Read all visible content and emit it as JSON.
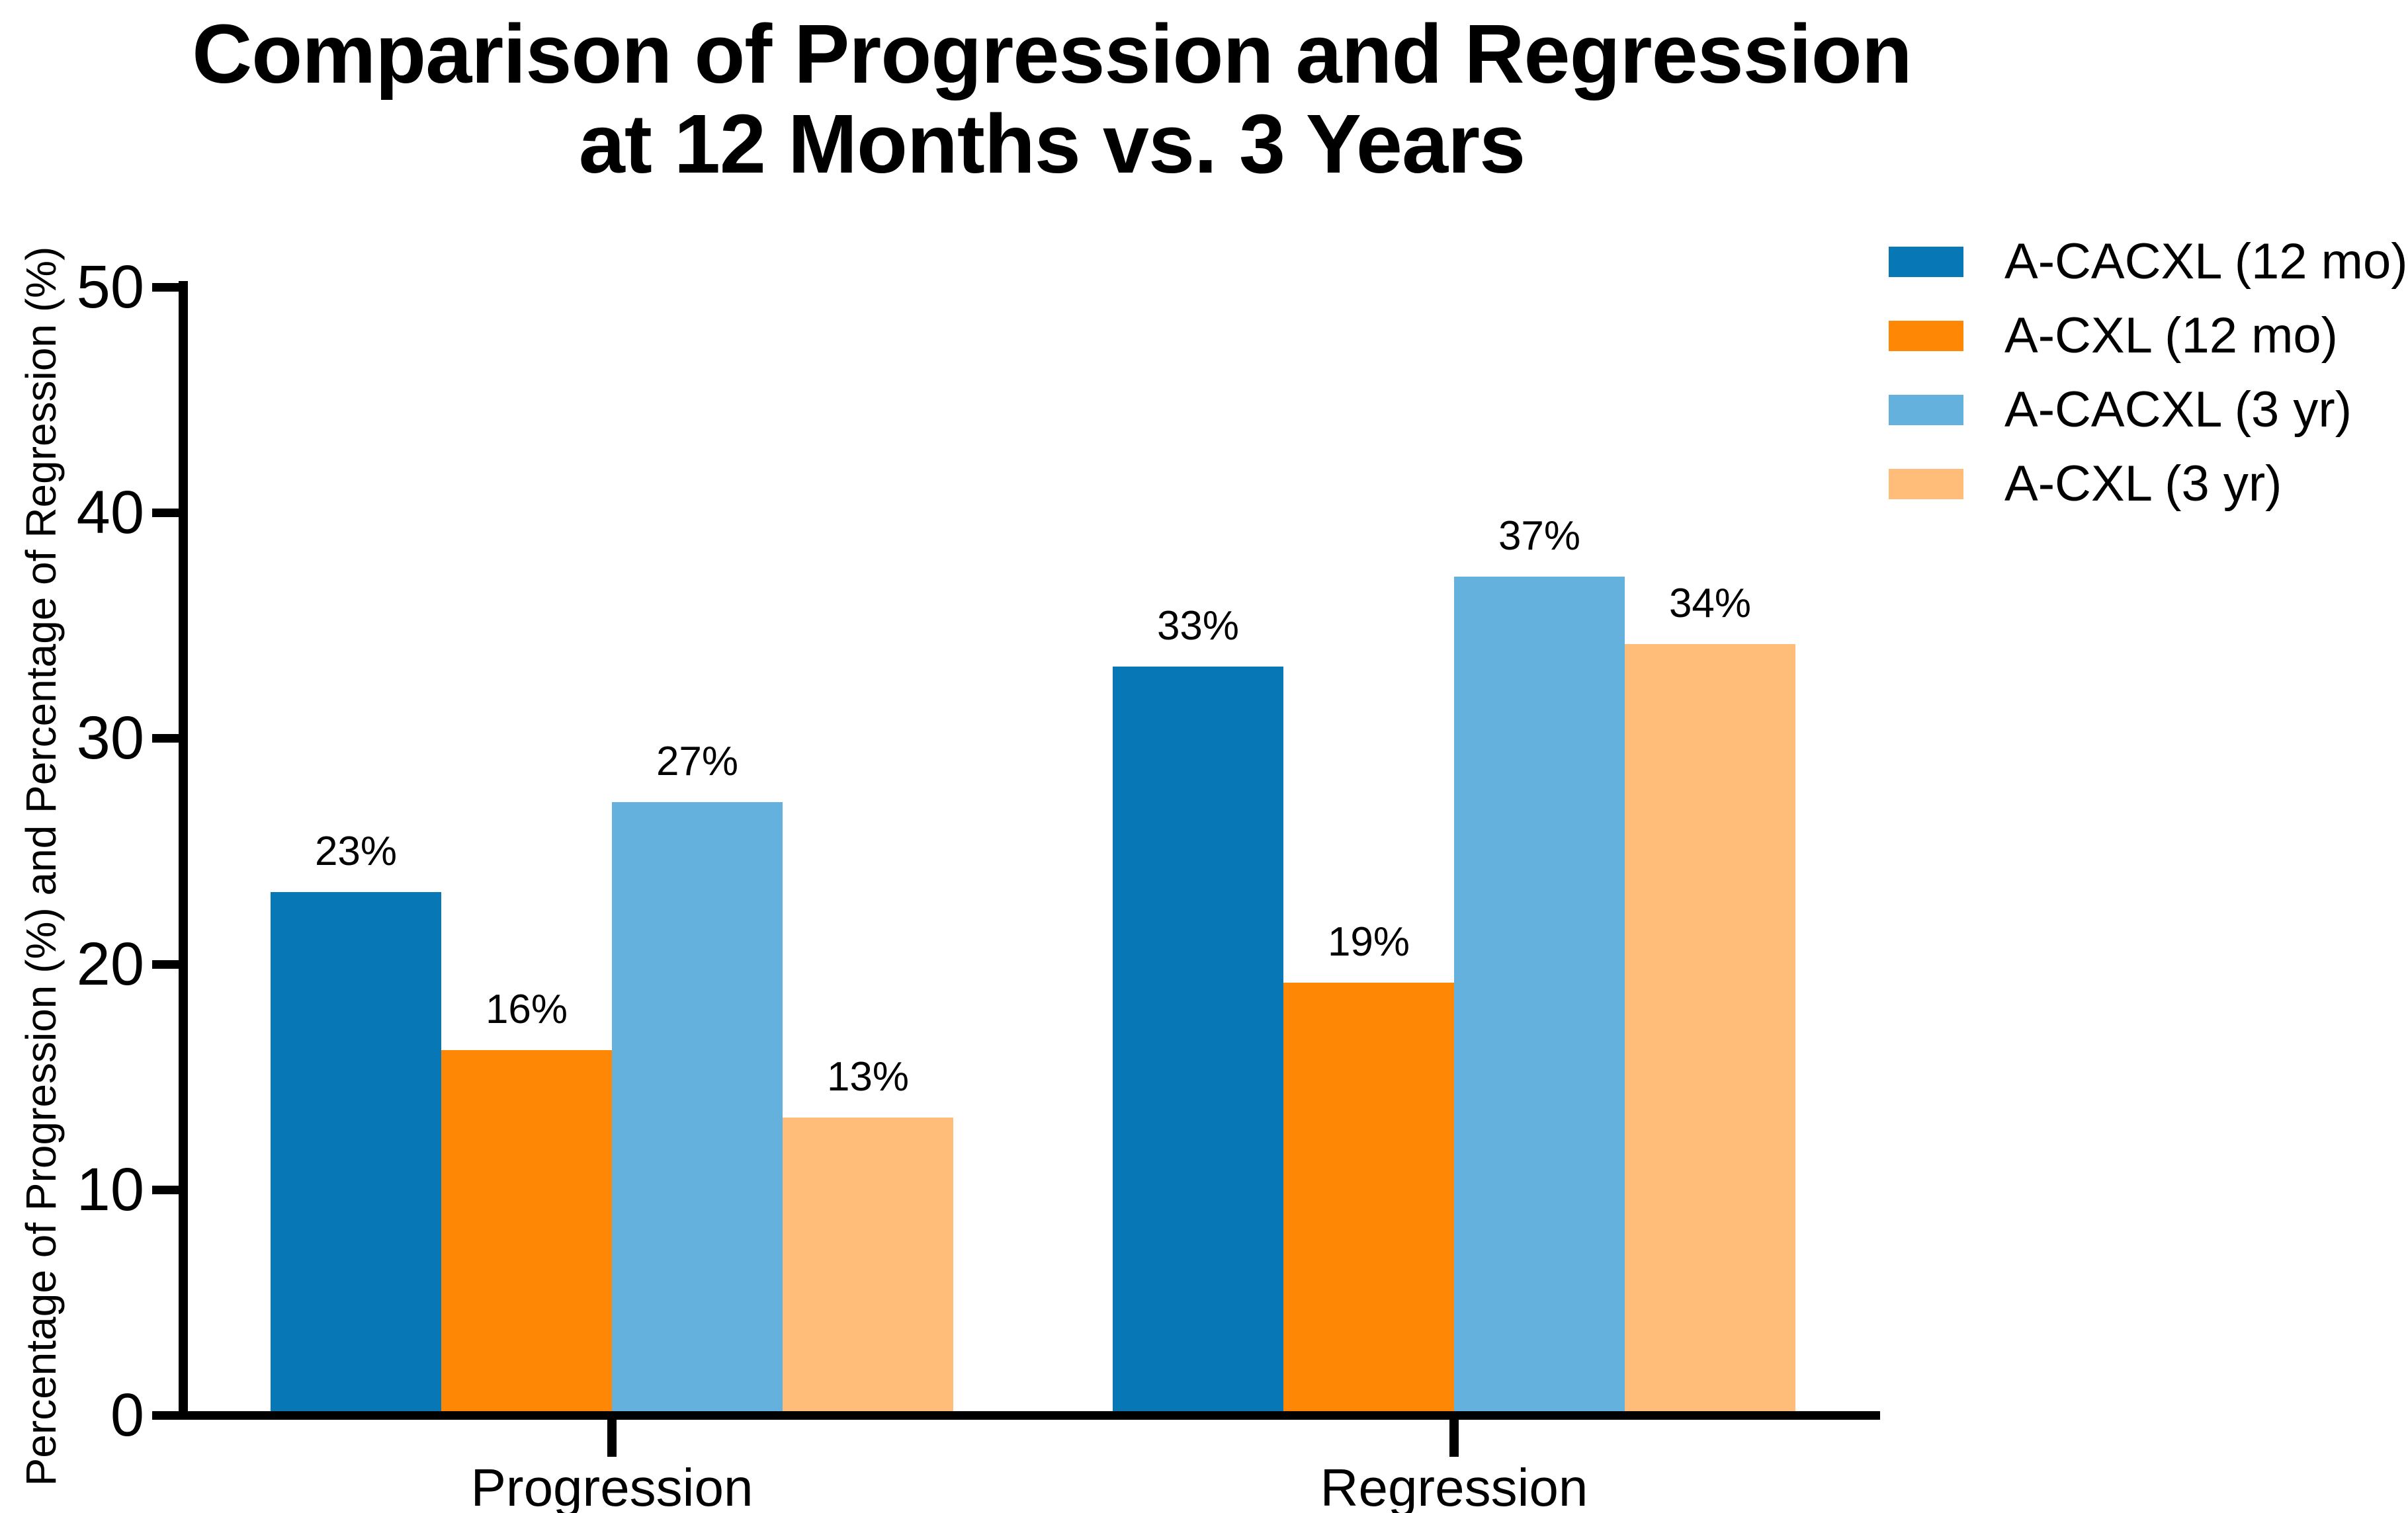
{
  "title": {
    "line1": "Comparison of Progression and Regression",
    "line2": "at 12 Months vs. 3 Years"
  },
  "chart_data": {
    "type": "bar",
    "title": "Comparison of Progression and Regression at 12 Months vs. 3 Years",
    "categories": [
      "Progression",
      "Regression"
    ],
    "series": [
      {
        "name": "A-CACXL (12 mo)",
        "color": "#0877b6",
        "values": [
          23,
          33
        ]
      },
      {
        "name": "A-CXL (12 mo)",
        "color": "#fe8705",
        "values": [
          16,
          19
        ]
      },
      {
        "name": "A-CACXL (3 yr)",
        "color": "#65b1dd",
        "values": [
          27,
          37
        ]
      },
      {
        "name": "A-CXL (3 yr)",
        "color": "#ffbd79",
        "values": [
          13,
          34
        ]
      }
    ],
    "value_labels": {
      "Progression": [
        "23%",
        "16%",
        "27%",
        "13%"
      ],
      "Regression": [
        "33%",
        "19%",
        "37%",
        "34%"
      ]
    },
    "value_label_suffix": "%",
    "xlabel": "",
    "ylabel": "Percentage of Progression (%) and Percentage of Regression (%)",
    "ylim": [
      0,
      50
    ],
    "yticks": [
      0,
      10,
      20,
      30,
      40,
      50
    ],
    "grid": false,
    "legend_position": "top-right",
    "axis_color": "#000000",
    "background_color": "#ffffff"
  }
}
